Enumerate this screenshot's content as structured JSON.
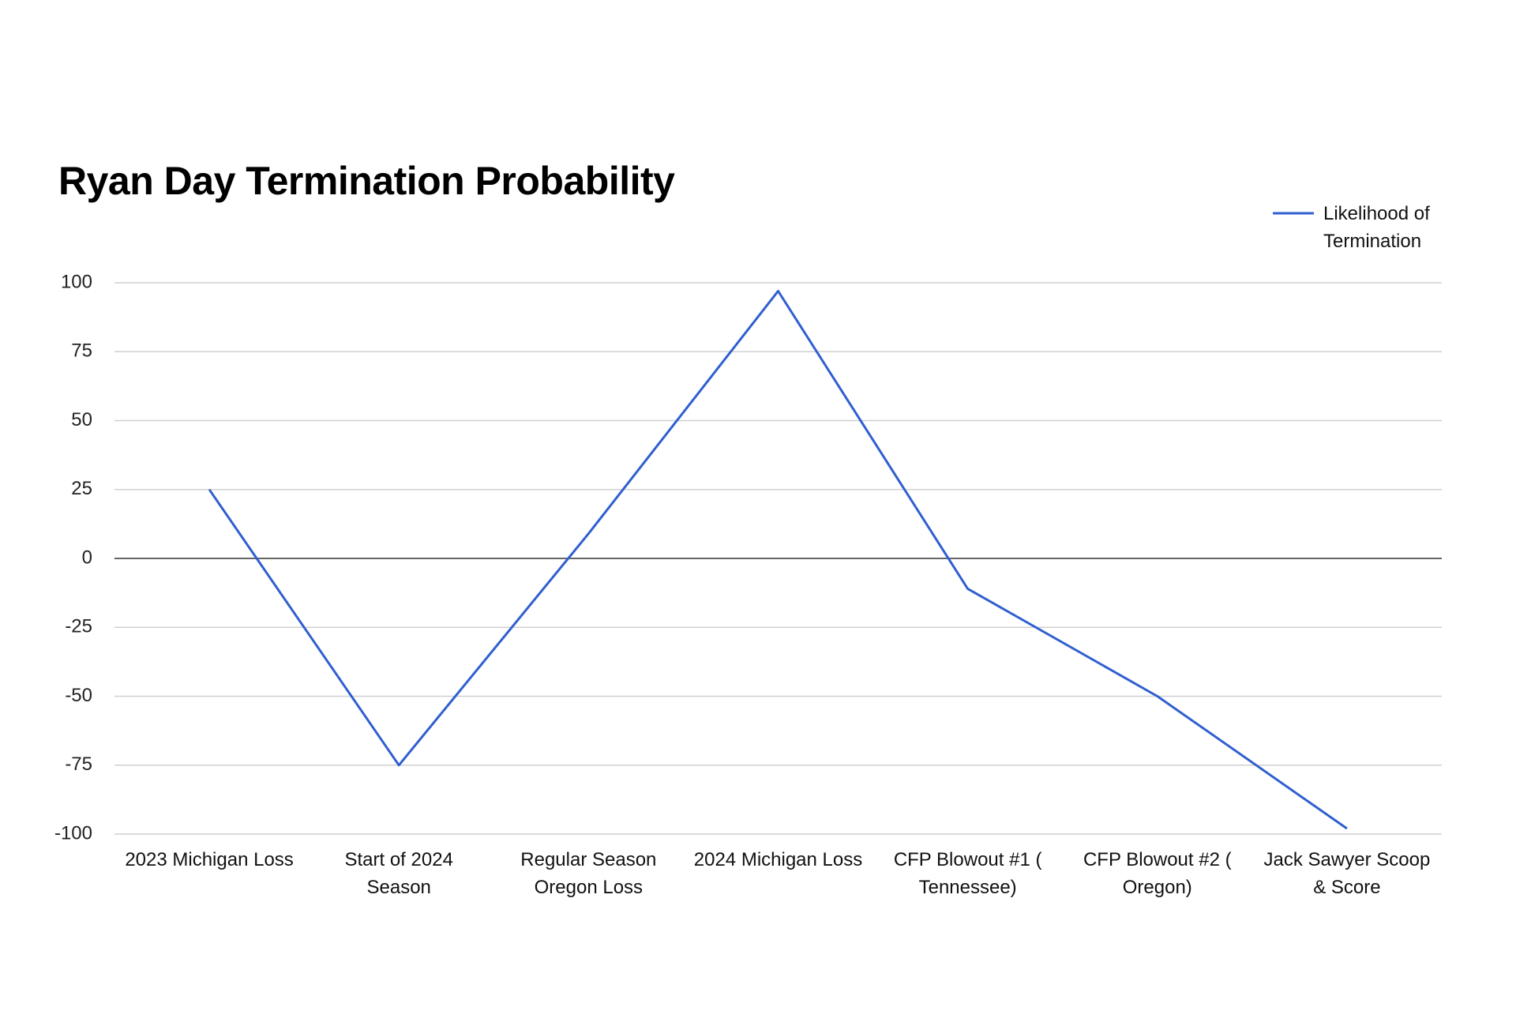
{
  "chart_data": {
    "type": "line",
    "title": "Ryan Day Termination Probability",
    "categories": [
      "2023 Michigan Loss",
      "Start of 2024 Season",
      "Regular Season Oregon Loss",
      "2024 Michigan Loss",
      "CFP Blowout #1 ( Tennessee)",
      "CFP Blowout #2 ( Oregon)",
      "Jack Sawyer Scoop & Score"
    ],
    "series": [
      {
        "name": "Likelihood of Termination",
        "color": "#2f5fd0",
        "values": [
          25,
          -75,
          9,
          97,
          -11,
          -50,
          -98
        ]
      }
    ],
    "ylim": [
      -100,
      100
    ],
    "yticks": [
      -100,
      -75,
      -50,
      -25,
      0,
      25,
      50,
      75,
      100
    ],
    "grid": true,
    "legend": "top-right"
  }
}
